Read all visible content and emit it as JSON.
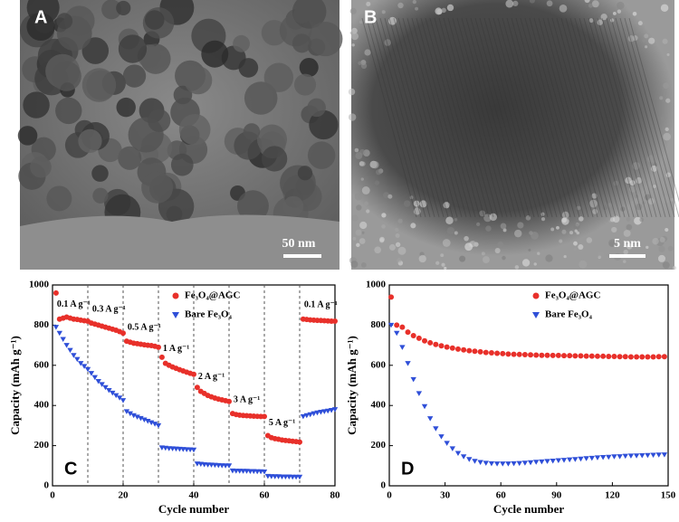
{
  "images": [
    {
      "label": "A",
      "scale_bar": "50 nm"
    },
    {
      "label": "B",
      "scale_bar": "5 nm"
    }
  ],
  "chart_data": [
    {
      "type": "scatter",
      "panel_label": "C",
      "x_label": "Cycle number",
      "y_label": "Capacity (mAh g⁻¹)",
      "xlim": [
        0,
        80
      ],
      "xticks": [
        0,
        20,
        40,
        60,
        80
      ],
      "ylim": [
        0,
        1000
      ],
      "yticks": [
        0,
        200,
        400,
        600,
        800,
        1000
      ],
      "dividers": [
        10,
        20,
        30,
        40,
        50,
        60,
        70
      ],
      "rate_labels": [
        "0.1 A g⁻¹",
        "0.3 A g⁻¹",
        "0.5 A g⁻¹",
        "1 A g⁻¹",
        "2 A g⁻¹",
        "3 A g⁻¹",
        "5 A g⁻¹",
        "0.1 A g⁻¹"
      ],
      "x": [
        1,
        2,
        3,
        4,
        5,
        6,
        7,
        8,
        9,
        10,
        11,
        12,
        13,
        14,
        15,
        16,
        17,
        18,
        19,
        20,
        21,
        22,
        23,
        24,
        25,
        26,
        27,
        28,
        29,
        30,
        31,
        32,
        33,
        34,
        35,
        36,
        37,
        38,
        39,
        40,
        41,
        42,
        43,
        44,
        45,
        46,
        47,
        48,
        49,
        50,
        51,
        52,
        53,
        54,
        55,
        56,
        57,
        58,
        59,
        60,
        61,
        62,
        63,
        64,
        65,
        66,
        67,
        68,
        69,
        70,
        71,
        72,
        73,
        74,
        75,
        76,
        77,
        78,
        79,
        80
      ],
      "series": [
        {
          "name": "Fe₃O₄@AGC",
          "color": "#e8302a",
          "values": [
            960,
            830,
            835,
            840,
            835,
            830,
            828,
            825,
            822,
            820,
            810,
            805,
            800,
            795,
            790,
            785,
            780,
            775,
            768,
            760,
            720,
            715,
            710,
            708,
            705,
            702,
            700,
            698,
            695,
            690,
            640,
            610,
            600,
            592,
            585,
            578,
            572,
            566,
            560,
            555,
            490,
            470,
            460,
            450,
            443,
            437,
            432,
            428,
            424,
            420,
            360,
            355,
            352,
            350,
            349,
            348,
            347,
            346,
            345,
            345,
            250,
            240,
            235,
            232,
            228,
            226,
            224,
            222,
            220,
            218,
            830,
            828,
            826,
            825,
            824,
            823,
            822,
            821,
            820,
            820
          ]
        },
        {
          "name": "Bare Fe₃O₄",
          "color": "#2f4fd8",
          "values": [
            790,
            760,
            730,
            700,
            675,
            650,
            630,
            610,
            595,
            580,
            560,
            540,
            520,
            505,
            490,
            475,
            462,
            450,
            438,
            425,
            370,
            360,
            350,
            343,
            336,
            329,
            322,
            315,
            308,
            300,
            190,
            188,
            186,
            185,
            184,
            183,
            182,
            181,
            180,
            179,
            110,
            108,
            106,
            105,
            104,
            103,
            102,
            101,
            100,
            100,
            75,
            74,
            74,
            73,
            73,
            72,
            72,
            71,
            71,
            70,
            48,
            47,
            46,
            46,
            45,
            45,
            45,
            44,
            44,
            44,
            345,
            350,
            355,
            360,
            364,
            367,
            370,
            373,
            376,
            380
          ]
        }
      ]
    },
    {
      "type": "scatter",
      "panel_label": "D",
      "x_label": "Cycle number",
      "y_label": "Capacity (mAh g⁻¹)",
      "xlim": [
        0,
        150
      ],
      "xticks": [
        0,
        30,
        60,
        90,
        120,
        150
      ],
      "ylim": [
        0,
        1000
      ],
      "yticks": [
        0,
        200,
        400,
        600,
        800,
        1000
      ],
      "x": [
        1,
        4,
        7,
        10,
        13,
        16,
        19,
        22,
        25,
        28,
        31,
        34,
        37,
        40,
        43,
        46,
        49,
        52,
        55,
        58,
        61,
        64,
        67,
        70,
        73,
        76,
        79,
        82,
        85,
        88,
        91,
        94,
        97,
        100,
        103,
        106,
        109,
        112,
        115,
        118,
        121,
        124,
        127,
        130,
        133,
        136,
        139,
        142,
        145,
        148
      ],
      "series": [
        {
          "name": "Fe₃O₄@AGC",
          "color": "#e8302a",
          "values": [
            940,
            800,
            790,
            765,
            748,
            735,
            722,
            712,
            704,
            697,
            691,
            686,
            681,
            677,
            673,
            670,
            667,
            664,
            662,
            660,
            658,
            656,
            655,
            654,
            653,
            652,
            651,
            650,
            650,
            649,
            649,
            648,
            648,
            647,
            647,
            646,
            646,
            645,
            645,
            644,
            644,
            643,
            643,
            642,
            642,
            642,
            642,
            642,
            643,
            643
          ]
        },
        {
          "name": "Bare Fe₃O₄",
          "color": "#2f4fd8",
          "values": [
            800,
            760,
            690,
            610,
            530,
            460,
            395,
            335,
            285,
            245,
            212,
            185,
            162,
            145,
            132,
            123,
            117,
            113,
            111,
            110,
            110,
            110,
            111,
            112,
            114,
            116,
            118,
            120,
            122,
            124,
            126,
            128,
            130,
            132,
            134,
            136,
            138,
            140,
            142,
            143,
            145,
            146,
            148,
            149,
            150,
            151,
            152,
            153,
            154,
            155
          ]
        }
      ]
    }
  ]
}
